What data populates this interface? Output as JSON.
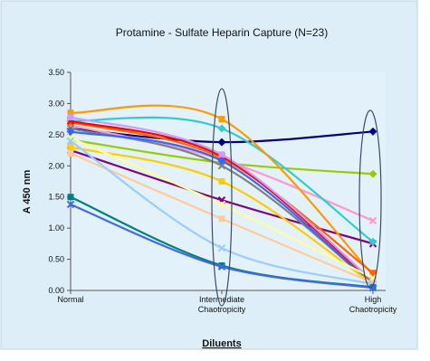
{
  "chart_data": {
    "type": "line",
    "title": "Protamine - Sulfate Heparin Capture (N=23)",
    "xlabel": "Diluents",
    "ylabel": "A 450 nm",
    "ylim": [
      0,
      3.5
    ],
    "yticks": [
      "0.00",
      "0.50",
      "1.00",
      "1.50",
      "2.00",
      "2.50",
      "3.00",
      "3.50"
    ],
    "yticks_values": [
      0,
      0.5,
      1,
      1.5,
      2,
      2.5,
      3,
      3.5
    ],
    "categories": [
      [
        "Normal"
      ],
      [
        "Intermediate",
        "Chaotropicity"
      ],
      [
        "High",
        "Chaotropicity"
      ]
    ],
    "grid": false,
    "legend": "none",
    "background": "#ddeef9",
    "plot_background": "#e3f1fb",
    "highlight_ellipses": [
      "Intermediate Chaotropicity",
      "High Chaotropicity"
    ],
    "series": [
      {
        "color": "#000080",
        "marker": "diamond",
        "values": [
          2.6,
          2.38,
          2.55
        ]
      },
      {
        "color": "#99cc00",
        "marker": "diamond",
        "values": [
          2.42,
          2.05,
          1.87
        ]
      },
      {
        "color": "#ff99cc",
        "marker": "cross",
        "values": [
          2.65,
          2.1,
          1.12
        ]
      },
      {
        "color": "#800080",
        "marker": "cross",
        "values": [
          2.25,
          1.45,
          0.75
        ]
      },
      {
        "color": "#33cccc",
        "marker": "diamond",
        "values": [
          2.72,
          2.6,
          0.78
        ]
      },
      {
        "color": "#ff9900",
        "marker": "square",
        "values": [
          2.85,
          2.75,
          0.25
        ]
      },
      {
        "color": "#ff6600",
        "marker": "square",
        "values": [
          2.7,
          2.12,
          0.28
        ]
      },
      {
        "color": "#ff0000",
        "marker": "cross",
        "values": [
          2.72,
          2.15,
          0.12
        ]
      },
      {
        "color": "#cc99ff",
        "marker": "square",
        "values": [
          2.78,
          2.18,
          0.15
        ]
      },
      {
        "color": "#808080",
        "marker": "cross",
        "values": [
          2.6,
          2.0,
          0.1
        ]
      },
      {
        "color": "#3366ff",
        "marker": "diamond",
        "values": [
          2.55,
          2.08,
          0.08
        ]
      },
      {
        "color": "#ffcc00",
        "marker": "square",
        "values": [
          2.3,
          1.75,
          0.1
        ]
      },
      {
        "color": "#ffff99",
        "marker": "cross",
        "values": [
          2.45,
          1.38,
          0.2
        ]
      },
      {
        "color": "#ffcc99",
        "marker": "square",
        "values": [
          2.2,
          1.15,
          0.12
        ]
      },
      {
        "color": "#99ccff",
        "marker": "cross",
        "values": [
          2.4,
          0.68,
          0.1
        ]
      },
      {
        "color": "#008080",
        "marker": "square",
        "values": [
          1.5,
          0.4,
          0.05
        ]
      },
      {
        "color": "#4169e1",
        "marker": "cross",
        "values": [
          1.38,
          0.38,
          0.04
        ]
      }
    ]
  }
}
